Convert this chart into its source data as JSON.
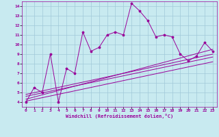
{
  "title": "",
  "xlabel": "Windchill (Refroidissement éolien,°C)",
  "ylabel": "",
  "background_color": "#c8eaf0",
  "grid_color": "#aad4dc",
  "line_color": "#990099",
  "xlim": [
    -0.5,
    23.5
  ],
  "ylim": [
    3.5,
    14.5
  ],
  "xticks": [
    0,
    1,
    2,
    3,
    4,
    5,
    6,
    7,
    8,
    9,
    10,
    11,
    12,
    13,
    14,
    15,
    16,
    17,
    18,
    19,
    20,
    21,
    22,
    23
  ],
  "yticks": [
    4,
    5,
    6,
    7,
    8,
    9,
    10,
    11,
    12,
    13,
    14
  ],
  "series1_x": [
    0,
    1,
    2,
    3,
    4,
    5,
    6,
    7,
    8,
    9,
    10,
    11,
    12,
    13,
    14,
    15,
    16,
    17,
    18,
    19,
    20,
    21,
    22,
    23
  ],
  "series1_y": [
    4.0,
    5.5,
    5.0,
    9.0,
    4.0,
    7.5,
    7.0,
    11.3,
    9.3,
    9.7,
    11.0,
    11.3,
    11.0,
    14.3,
    13.5,
    12.5,
    10.8,
    11.0,
    10.8,
    9.0,
    8.3,
    8.8,
    10.2,
    9.3
  ],
  "line2_x": [
    0,
    23
  ],
  "line2_y": [
    4.3,
    9.5
  ],
  "line3_x": [
    0,
    23
  ],
  "line3_y": [
    4.6,
    8.7
  ],
  "line4_x": [
    0,
    23
  ],
  "line4_y": [
    4.1,
    8.2
  ],
  "line5_x": [
    0,
    23
  ],
  "line5_y": [
    4.8,
    9.0
  ]
}
